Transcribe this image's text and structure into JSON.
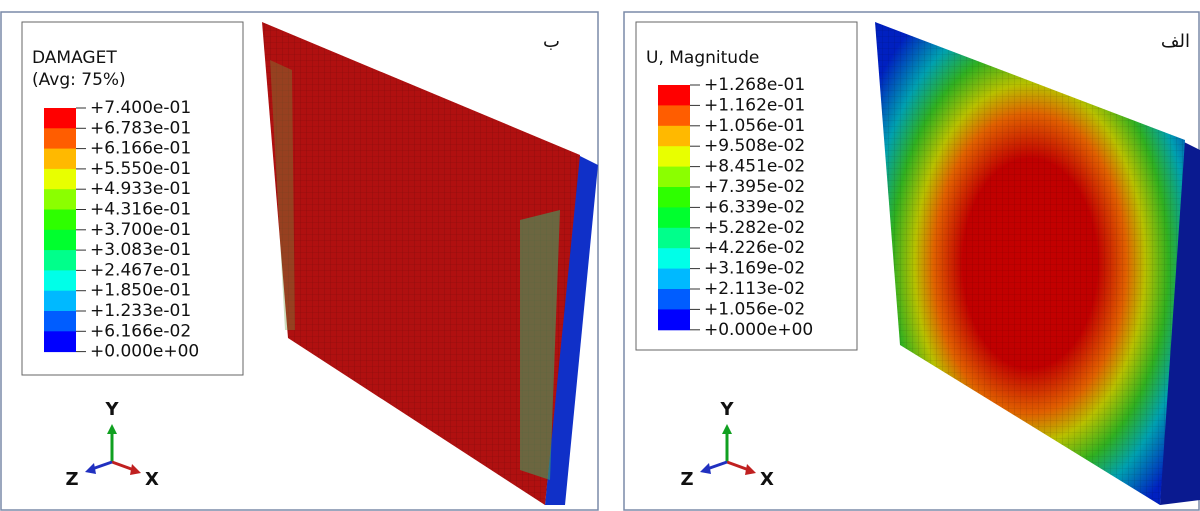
{
  "panels": [
    {
      "tag": "ب",
      "legend": {
        "title": "DAMAGET",
        "subtitle": "(Avg: 75%)",
        "labels": [
          "+7.400e-01",
          "+6.783e-01",
          "+6.166e-01",
          "+5.550e-01",
          "+4.933e-01",
          "+4.316e-01",
          "+3.700e-01",
          "+3.083e-01",
          "+2.467e-01",
          "+1.850e-01",
          "+1.233e-01",
          "+6.166e-02",
          "+0.000e+00"
        ]
      },
      "axes": {
        "y": "Y",
        "z": "Z",
        "x": "X"
      }
    },
    {
      "tag": "الف",
      "legend": {
        "title": "U, Magnitude",
        "labels": [
          "+1.268e-01",
          "+1.162e-01",
          "+1.056e-01",
          "+9.508e-02",
          "+8.451e-02",
          "+7.395e-02",
          "+6.339e-02",
          "+5.282e-02",
          "+4.226e-02",
          "+3.169e-02",
          "+2.113e-02",
          "+1.056e-02",
          "+0.000e+00"
        ]
      },
      "axes": {
        "y": "Y",
        "z": "Z",
        "x": "X"
      }
    }
  ]
}
